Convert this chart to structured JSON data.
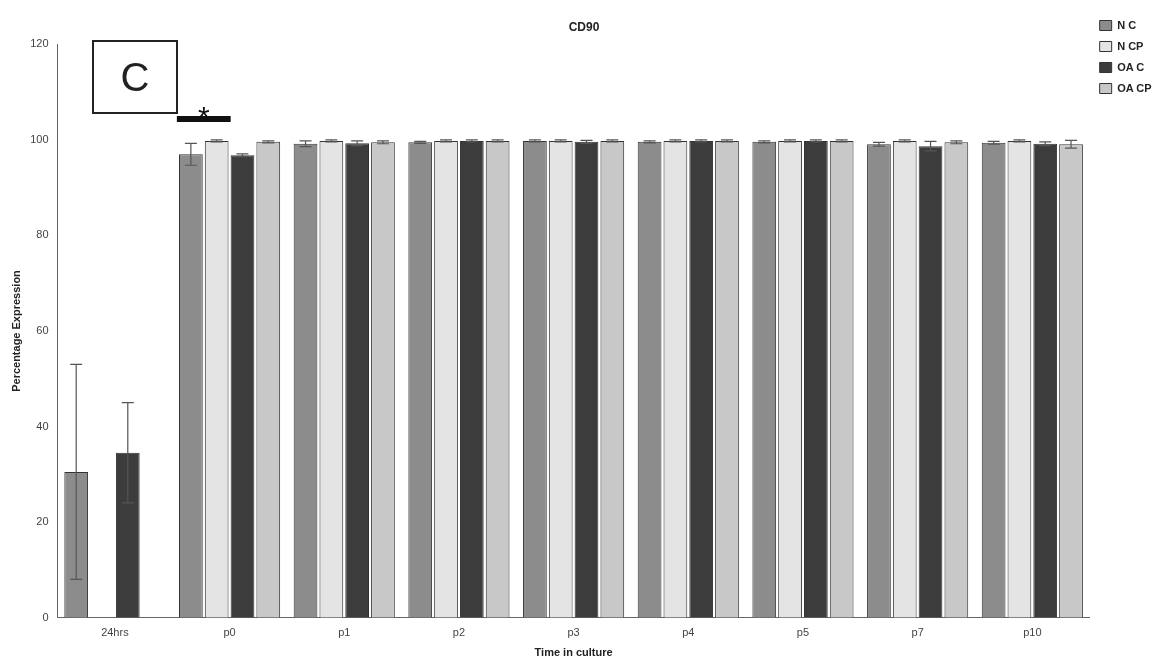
{
  "chart_data": {
    "type": "bar",
    "title": "CD90",
    "xlabel": "Time in culture",
    "ylabel": "Percentage Expression",
    "categories": [
      "24hrs",
      "p0",
      "p1",
      "p2",
      "p3",
      "p4",
      "p5",
      "p7",
      "p10"
    ],
    "series": [
      {
        "name": "N C",
        "color": "#8c8c8c",
        "values": [
          30.5,
          97,
          99.2,
          99.5,
          99.8,
          99.6,
          99.6,
          99.1,
          99.4
        ],
        "errors": [
          22.5,
          2.3,
          0.6,
          0.2,
          0.2,
          0.2,
          0.2,
          0.4,
          0.3
        ]
      },
      {
        "name": "N CP",
        "color": "#e4e4e4",
        "values": [
          null,
          99.8,
          99.8,
          99.8,
          99.8,
          99.8,
          99.8,
          99.8,
          99.8
        ],
        "errors": [
          null,
          0.2,
          0.2,
          0.2,
          0.2,
          0.2,
          0.2,
          0.2,
          0.2
        ]
      },
      {
        "name": "OA C",
        "color": "#3c3c3c",
        "values": [
          34.5,
          96.8,
          99.3,
          99.8,
          99.6,
          99.8,
          99.8,
          98.7,
          99.2
        ],
        "errors": [
          10.5,
          0.3,
          0.5,
          0.2,
          0.3,
          0.2,
          0.2,
          1,
          0.4
        ]
      },
      {
        "name": "OA CP",
        "color": "#c8c8c8",
        "values": [
          null,
          99.6,
          99.5,
          99.8,
          99.8,
          99.8,
          99.8,
          99.5,
          99.1
        ],
        "errors": [
          null,
          0.2,
          0.3,
          0.2,
          0.2,
          0.2,
          0.2,
          0.3,
          0.8
        ]
      }
    ],
    "ylim": [
      0,
      120
    ],
    "yticks": [
      0,
      20,
      40,
      60,
      80,
      100,
      120
    ],
    "grid": false,
    "legend": "top right",
    "annotations": [
      "C",
      "*"
    ]
  }
}
